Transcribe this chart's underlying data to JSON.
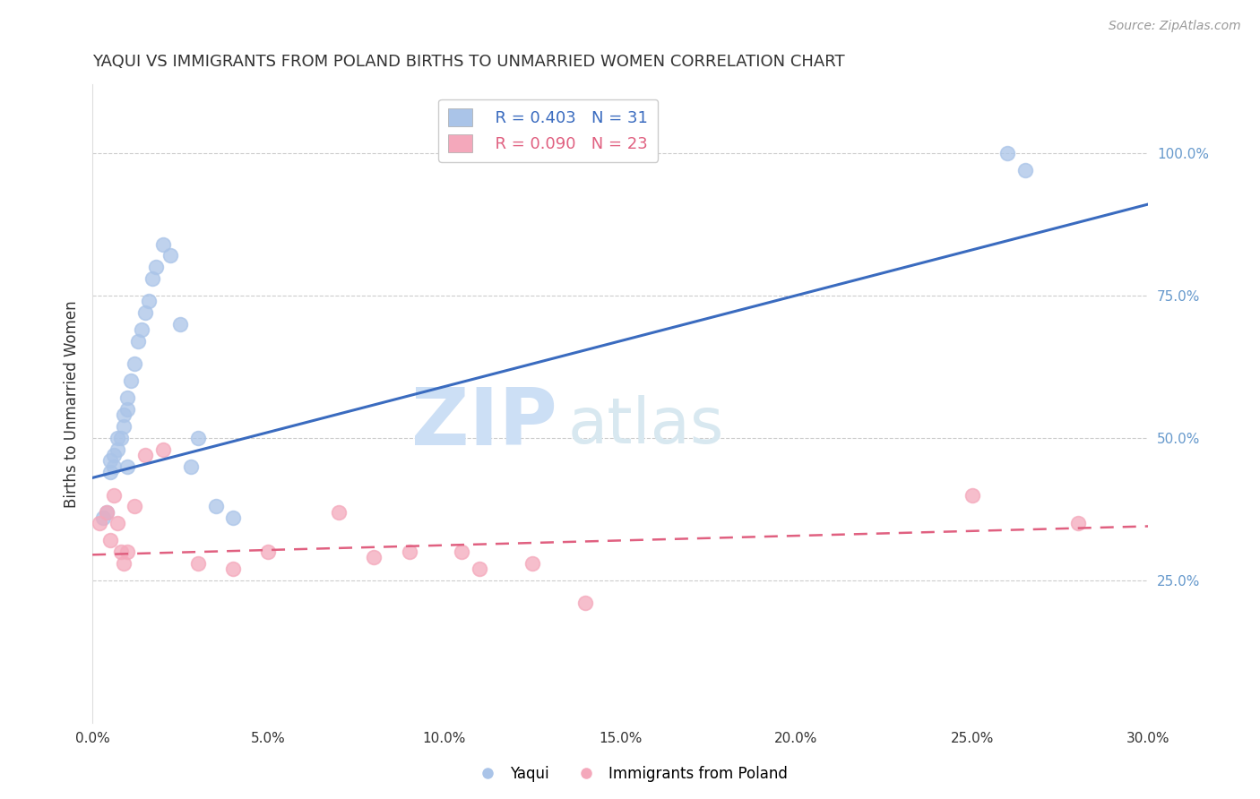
{
  "title": "YAQUI VS IMMIGRANTS FROM POLAND BIRTHS TO UNMARRIED WOMEN CORRELATION CHART",
  "source": "Source: ZipAtlas.com",
  "ylabel": "Births to Unmarried Women",
  "xlabel_ticks": [
    "0.0%",
    "5.0%",
    "10.0%",
    "15.0%",
    "20.0%",
    "25.0%",
    "30.0%"
  ],
  "xlabel_vals": [
    0.0,
    5.0,
    10.0,
    15.0,
    20.0,
    25.0,
    30.0
  ],
  "ylabel_right_ticks": [
    "25.0%",
    "50.0%",
    "75.0%",
    "100.0%"
  ],
  "ylabel_right_vals": [
    25.0,
    50.0,
    75.0,
    100.0
  ],
  "xmin": 0.0,
  "xmax": 30.0,
  "ymin": 0.0,
  "ymax": 112.0,
  "yaqui_x": [
    0.3,
    0.4,
    0.5,
    0.5,
    0.6,
    0.6,
    0.7,
    0.7,
    0.8,
    0.9,
    0.9,
    1.0,
    1.0,
    1.0,
    1.1,
    1.2,
    1.3,
    1.4,
    1.5,
    1.6,
    1.7,
    1.8,
    2.0,
    2.2,
    2.5,
    3.0,
    3.5,
    4.0,
    26.0,
    26.5,
    2.8
  ],
  "yaqui_y": [
    36,
    37,
    44,
    46,
    45,
    47,
    48,
    50,
    50,
    52,
    54,
    55,
    57,
    45,
    60,
    63,
    67,
    69,
    72,
    74,
    78,
    80,
    84,
    82,
    70,
    50,
    38,
    36,
    100,
    97,
    45
  ],
  "poland_x": [
    0.2,
    0.4,
    0.5,
    0.6,
    0.7,
    0.8,
    0.9,
    1.0,
    1.2,
    1.5,
    2.0,
    3.0,
    4.0,
    5.0,
    7.0,
    8.0,
    9.0,
    11.0,
    14.0,
    25.0,
    10.5,
    12.5,
    28.0
  ],
  "poland_y": [
    35,
    37,
    32,
    40,
    35,
    30,
    28,
    30,
    38,
    47,
    48,
    28,
    27,
    30,
    37,
    29,
    30,
    27,
    21,
    40,
    30,
    28,
    35
  ],
  "yaqui_color": "#aac4e8",
  "poland_color": "#f4a8bb",
  "blue_line_color": "#3a6bbf",
  "pink_line_color": "#e06080",
  "legend_r1": "R = 0.403   N = 31",
  "legend_r2": "R = 0.090   N = 23",
  "bg_color": "#ffffff",
  "grid_color": "#cccccc",
  "title_color": "#333333",
  "axis_label_color": "#333333",
  "right_axis_color": "#6699cc",
  "watermark_zip": "ZIP",
  "watermark_atlas": "atlas",
  "watermark_color_zip": "#ccdff5",
  "watermark_color_atlas": "#d8e8f0",
  "blue_line_x0": 0.0,
  "blue_line_y0": 43.0,
  "blue_line_x1": 30.0,
  "blue_line_y1": 91.0,
  "pink_line_x0": 0.0,
  "pink_line_y0": 29.5,
  "pink_line_x1": 30.0,
  "pink_line_y1": 34.5
}
